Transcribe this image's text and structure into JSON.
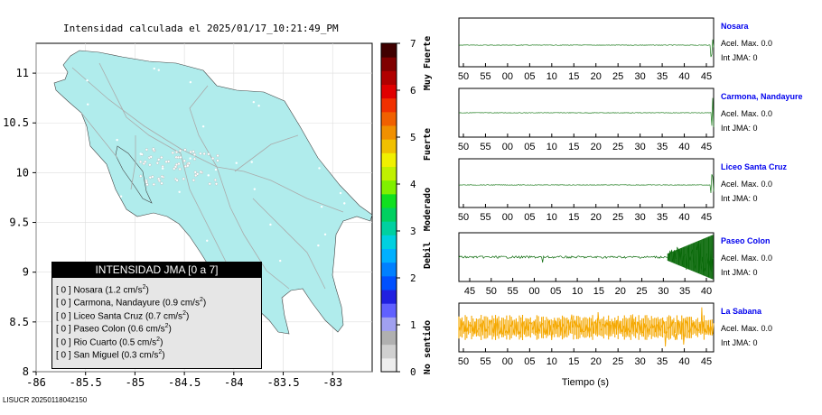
{
  "title": "Intensidad calculada el 2025/01/17_10:21:49_PM",
  "footer": "LISUCR 20250118042150",
  "map": {
    "xticks": [
      "-86",
      "-85.5",
      "-85",
      "-84.5",
      "-84",
      "-83.5",
      "-83"
    ],
    "yticks": [
      "11",
      "10.5",
      "10",
      "9.5",
      "9",
      "8.5",
      "8"
    ],
    "land_color": "#b0ecec"
  },
  "colorbar": {
    "ticks": [
      "0",
      "1",
      "2",
      "3",
      "4",
      "5",
      "6",
      "7"
    ],
    "labels": [
      "No sentido",
      "Debil",
      "Moderado",
      "Fuerte",
      "Muy Fuerte"
    ]
  },
  "legend": {
    "header": "INTENSIDAD JMA [0 a 7]",
    "items": [
      {
        "text": "[ 0 ]  Nosara (1.2 cm/s",
        "sup": "2",
        "close": ")"
      },
      {
        "text": "[ 0 ]  Carmona, Nandayure (0.9 cm/s",
        "sup": "2",
        "close": ")"
      },
      {
        "text": "[ 0 ]  Liceo Santa Cruz (0.7 cm/s",
        "sup": "2",
        "close": ")"
      },
      {
        "text": "[ 0 ]  Paseo Colon (0.6 cm/s",
        "sup": "2",
        "close": ")"
      },
      {
        "text": "[ 0 ]  Rio Cuarto (0.5 cm/s",
        "sup": "2",
        "close": ")"
      },
      {
        "text": "[ 0 ]  San Miguel (0.3 cm/s",
        "sup": "2",
        "close": ")"
      }
    ]
  },
  "stations": [
    {
      "name": "Nosara",
      "acel": "Acel. Max. 0.0",
      "int": "Int JMA: 0",
      "color": "#1a7a1a",
      "kind": "flat",
      "ticks": [
        "50",
        "55",
        "00",
        "05",
        "10",
        "15",
        "20",
        "25",
        "30",
        "35",
        "40",
        "45"
      ]
    },
    {
      "name": "Carmona, Nandayure",
      "acel": "Acel. Max. 0.0",
      "int": "Int JMA: 0",
      "color": "#1a7a1a",
      "kind": "flat",
      "ticks": [
        "50",
        "55",
        "00",
        "05",
        "10",
        "15",
        "20",
        "25",
        "30",
        "35",
        "40",
        "45"
      ]
    },
    {
      "name": "Liceo Santa Cruz",
      "acel": "Acel. Max. 0.0",
      "int": "Int JMA: 0",
      "color": "#1a7a1a",
      "kind": "flat2",
      "ticks": [
        "50",
        "55",
        "00",
        "05",
        "10",
        "15",
        "20",
        "25",
        "30",
        "35",
        "40",
        "45"
      ]
    },
    {
      "name": "Paseo Colon",
      "acel": "Acel. Max. 0.0",
      "int": "Int JMA: 0",
      "color": "#0a6a0a",
      "kind": "burst",
      "ticks": [
        "45",
        "50",
        "55",
        "00",
        "05",
        "10",
        "15",
        "20",
        "25",
        "30",
        "35",
        "40"
      ]
    },
    {
      "name": "La Sabana",
      "acel": "Acel. Max. 0.0",
      "int": "Int JMA: 0",
      "color": "#f5a800",
      "kind": "noise",
      "ticks": [
        "50",
        "55",
        "00",
        "05",
        "10",
        "15",
        "20",
        "25",
        "30",
        "35",
        "40",
        "45"
      ]
    }
  ],
  "xlabel": "Tiempo (s)",
  "chart_data": [
    {
      "type": "scatter",
      "title": "Intensidad calculada el 2025/01/17_10:21:49_PM",
      "xlabel": "",
      "ylabel": "",
      "xlim": [
        -86,
        -82.6
      ],
      "ylim": [
        8,
        11.3
      ],
      "grid": true,
      "legend_position": "bottom-left",
      "series": [
        {
          "name": "INTENSIDAD JMA [0 a 7]",
          "values": [
            0,
            0,
            0,
            0,
            0,
            0
          ]
        }
      ],
      "categories": [
        "Nosara",
        "Carmona, Nandayure",
        "Liceo Santa Cruz",
        "Paseo Colon",
        "Rio Cuarto",
        "San Miguel"
      ],
      "acceleration_cm_s2": [
        1.2,
        0.9,
        0.7,
        0.6,
        0.5,
        0.3
      ]
    },
    {
      "type": "line",
      "xlabel": "Tiempo (s)",
      "categories": [
        "Nosara",
        "Carmona, Nandayure",
        "Liceo Santa Cruz",
        "Paseo Colon",
        "La Sabana"
      ],
      "acel_max": [
        0.0,
        0.0,
        0.0,
        0.0,
        0.0
      ],
      "int_jma": [
        0,
        0,
        0,
        0,
        0
      ]
    }
  ]
}
